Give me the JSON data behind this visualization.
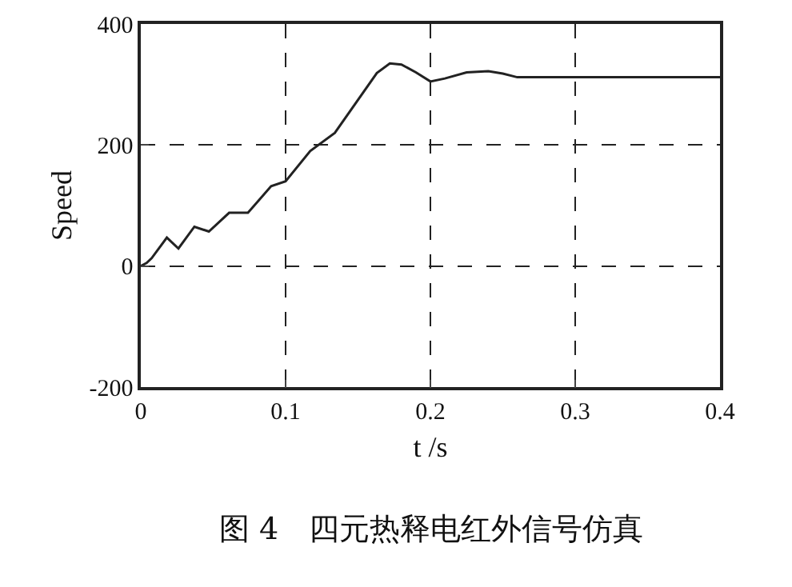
{
  "chart_data": {
    "type": "line",
    "xlabel": "t /s",
    "ylabel": "Speed",
    "annotations": [
      "图 4　四元热释电红外信号仿真"
    ],
    "x": [
      0,
      0.004,
      0.0075,
      0.018,
      0.026,
      0.037,
      0.047,
      0.061,
      0.074,
      0.09,
      0.1,
      0.117,
      0.134,
      0.163,
      0.172,
      0.18,
      0.19,
      0.2,
      0.21,
      0.225,
      0.24,
      0.25,
      0.26,
      0.3,
      0.35,
      0.4
    ],
    "series": [
      {
        "color": "#222222",
        "values": [
          0,
          5,
          13,
          47,
          29,
          65,
          57,
          88,
          88,
          132,
          140,
          190,
          220,
          319,
          335,
          333,
          320,
          305,
          310,
          320,
          322,
          318,
          312,
          312,
          312,
          312
        ]
      }
    ],
    "xlim": [
      0,
      0.4
    ],
    "xticks": [
      0,
      0.1,
      0.2,
      0.3,
      0.4
    ],
    "ylim": [
      -200,
      400
    ],
    "yticks": [
      -200,
      0,
      200,
      400
    ],
    "grid": true,
    "line_style": "solid",
    "marker": "none"
  }
}
